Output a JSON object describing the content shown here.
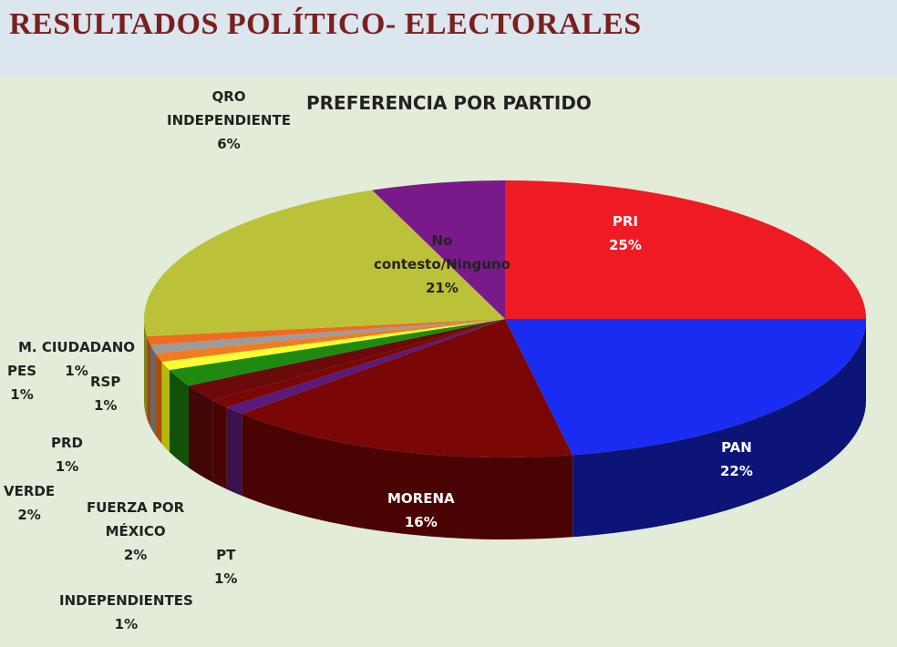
{
  "slide": {
    "title": "RESULTADOS POLÍTICO- ELECTORALES"
  },
  "chart_data": {
    "type": "pie",
    "title": "PREFERENCIA POR PARTIDO",
    "slices": [
      {
        "name": "PRI",
        "value": 25,
        "label": "25%",
        "color": "#ee1b24",
        "side": "#9a1016"
      },
      {
        "name": "PAN",
        "value": 22,
        "label": "22%",
        "color": "#1a2cf2",
        "side": "#0c1478"
      },
      {
        "name": "MORENA",
        "value": 16,
        "label": "16%",
        "color": "#7a0606",
        "side": "#4a0303"
      },
      {
        "name": "PT",
        "value": 1,
        "label": "1%",
        "color": "#5a1a7a",
        "side": "#3a104e"
      },
      {
        "name": "INDEPENDIENTES",
        "value": 1,
        "label": "1%",
        "color": "#7a0606",
        "side": "#4a0303"
      },
      {
        "name": "FUERZA POR MÉXICO",
        "value": 2,
        "label": "2%",
        "color": "#6a0a0a",
        "side": "#420606"
      },
      {
        "name": "VERDE",
        "value": 2,
        "label": "2%",
        "color": "#1f8a10",
        "side": "#125208"
      },
      {
        "name": "PRD",
        "value": 1,
        "label": "1%",
        "color": "#ffff33",
        "side": "#b8b80c"
      },
      {
        "name": "RSP",
        "value": 1,
        "label": "1%",
        "color": "#f47a20",
        "side": "#a44e10"
      },
      {
        "name": "PES",
        "value": 1,
        "label": "1%",
        "color": "#9c9c9c",
        "side": "#666666"
      },
      {
        "name": "M. CIUDADANO",
        "value": 1,
        "label": "1%",
        "color": "#f06a22",
        "side": "#a04414"
      },
      {
        "name": "No contesto/Ninguno",
        "value": 21,
        "label": "21%",
        "color": "#bcc238",
        "side": "#80851c"
      },
      {
        "name": "QRO INDEPENDIENTE",
        "value": 6,
        "label": "6%",
        "color": "#7a1a8a",
        "side": "#4c0f56"
      }
    ],
    "labels": [
      {
        "lines": [
          "PRI",
          "25%"
        ],
        "tone": "light"
      },
      {
        "lines": [
          "PAN",
          "22%"
        ],
        "tone": "light"
      },
      {
        "lines": [
          "MORENA",
          "16%"
        ],
        "tone": "light"
      },
      {
        "lines": [
          "PT",
          "1%"
        ],
        "tone": "dark"
      },
      {
        "lines": [
          "INDEPENDIENTES",
          "1%"
        ],
        "tone": "dark"
      },
      {
        "lines": [
          "FUERZA POR",
          "MÉXICO",
          "2%"
        ],
        "tone": "dark"
      },
      {
        "lines": [
          "VERDE",
          "2%"
        ],
        "tone": "dark"
      },
      {
        "lines": [
          "PRD",
          "1%"
        ],
        "tone": "dark"
      },
      {
        "lines": [
          "RSP",
          "1%"
        ],
        "tone": "dark"
      },
      {
        "lines": [
          "PES",
          "1%"
        ],
        "tone": "dark"
      },
      {
        "lines": [
          "M. CIUDADANO",
          "1%"
        ],
        "tone": "dark"
      },
      {
        "lines": [
          "No",
          "contesto/Ninguno",
          "21%"
        ],
        "tone": "dark"
      },
      {
        "lines": [
          "QRO",
          "INDEPENDIENTE",
          "6%"
        ],
        "tone": "dark"
      }
    ]
  }
}
